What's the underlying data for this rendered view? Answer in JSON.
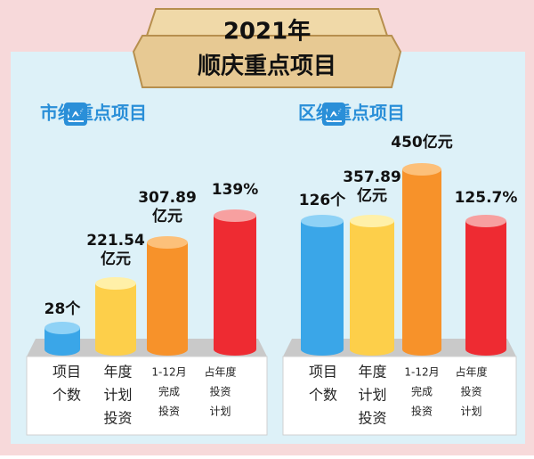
{
  "header": {
    "year": "2021年",
    "title": "顺庆重点项目"
  },
  "panels": [
    {
      "title": "市级重点项目",
      "items": [
        {
          "value": [
            "28个"
          ],
          "label": [
            "项目",
            "个数"
          ]
        },
        {
          "value": [
            "221.54",
            "亿元"
          ],
          "label": [
            "年度",
            "计划",
            "投资"
          ]
        },
        {
          "value": [
            "307.89",
            "亿元"
          ],
          "label": [
            "1-12月",
            "完成",
            "投资"
          ]
        },
        {
          "value": [
            "139%"
          ],
          "label": [
            "占年度",
            "投资",
            "计划"
          ]
        }
      ]
    },
    {
      "title": "区级重点项目",
      "items": [
        {
          "value": [
            "126个"
          ],
          "label": [
            "项目",
            "个数"
          ]
        },
        {
          "value": [
            "357.89",
            "亿元"
          ],
          "label": [
            "年度",
            "计划",
            "投资"
          ]
        },
        {
          "value": [
            "450亿元"
          ],
          "label": [
            "1-12月",
            "完成",
            "投资"
          ]
        },
        {
          "value": [
            "125.7%"
          ],
          "label": [
            "占年度",
            "投资",
            "计划"
          ]
        }
      ]
    }
  ]
}
